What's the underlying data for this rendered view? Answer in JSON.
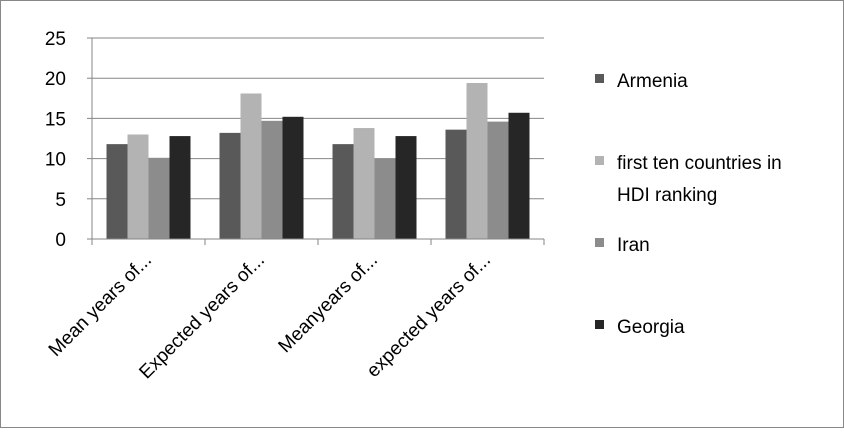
{
  "chart_data": {
    "type": "bar",
    "categories": [
      "Mean years of...",
      "Expected years of...",
      "Meanyears of...",
      "expected years of..."
    ],
    "series": [
      {
        "name": "Armenia",
        "values": [
          11.8,
          13.2,
          11.8,
          13.6
        ],
        "color": "#595959"
      },
      {
        "name": "first ten countries in HDI ranking",
        "legend_lines": [
          "first ten countries in",
          "HDI ranking"
        ],
        "values": [
          13.0,
          18.1,
          13.8,
          19.4
        ],
        "color": "#b3b3b3"
      },
      {
        "name": "Iran",
        "values": [
          10.1,
          14.7,
          10.0,
          14.6
        ],
        "color": "#8c8c8c"
      },
      {
        "name": "Georgia",
        "values": [
          12.8,
          15.2,
          12.8,
          15.7
        ],
        "color": "#262626"
      }
    ],
    "y_ticks": [
      "0",
      "5",
      "10",
      "15",
      "20",
      "25"
    ],
    "ylim": [
      0,
      25
    ],
    "title": "",
    "xlabel": "",
    "ylabel": "",
    "grid": true,
    "legend_position": "right"
  }
}
